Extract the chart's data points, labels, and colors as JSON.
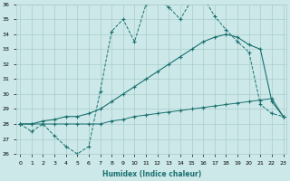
{
  "xlabel": "Humidex (Indice chaleur)",
  "xlim_min": 0,
  "xlim_max": 23,
  "ylim_min": 26,
  "ylim_max": 36,
  "yticks": [
    26,
    27,
    28,
    29,
    30,
    31,
    32,
    33,
    34,
    35,
    36
  ],
  "xticks": [
    0,
    1,
    2,
    3,
    4,
    5,
    6,
    7,
    8,
    9,
    10,
    11,
    12,
    13,
    14,
    15,
    16,
    17,
    18,
    19,
    20,
    21,
    22,
    23
  ],
  "bg_color": "#cce8e8",
  "grid_color": "#aacccc",
  "line_color": "#1a7070",
  "s1_x": [
    0,
    1,
    2,
    3,
    4,
    5,
    6,
    7,
    8,
    9,
    10,
    11,
    12,
    13,
    14,
    15,
    16,
    17,
    18,
    19,
    20,
    21,
    22,
    23
  ],
  "s1_y": [
    28.0,
    27.5,
    28.0,
    27.2,
    26.5,
    26.0,
    26.5,
    30.2,
    34.2,
    35.0,
    33.5,
    36.0,
    36.3,
    35.8,
    35.0,
    36.3,
    36.5,
    35.2,
    34.3,
    33.5,
    32.8,
    29.3,
    28.7,
    28.5
  ],
  "s2_x": [
    0,
    1,
    2,
    3,
    4,
    5,
    6,
    7,
    8,
    9,
    10,
    11,
    12,
    13,
    14,
    15,
    16,
    17,
    18,
    19,
    20,
    21,
    22,
    23
  ],
  "s2_y": [
    28.0,
    28.0,
    28.2,
    28.3,
    28.5,
    28.5,
    28.7,
    29.0,
    29.5,
    30.0,
    30.5,
    31.0,
    31.5,
    32.0,
    32.5,
    33.0,
    33.5,
    33.8,
    34.0,
    33.8,
    33.3,
    33.0,
    29.5,
    28.5
  ],
  "s3_x": [
    0,
    1,
    2,
    3,
    4,
    5,
    6,
    7,
    8,
    9,
    10,
    11,
    12,
    13,
    14,
    15,
    16,
    17,
    18,
    19,
    20,
    21,
    22,
    23
  ],
  "s3_y": [
    28.0,
    28.0,
    28.0,
    28.0,
    28.0,
    28.0,
    28.0,
    28.0,
    28.2,
    28.3,
    28.5,
    28.6,
    28.7,
    28.8,
    28.9,
    29.0,
    29.1,
    29.2,
    29.3,
    29.4,
    29.5,
    29.6,
    29.7,
    28.5
  ]
}
